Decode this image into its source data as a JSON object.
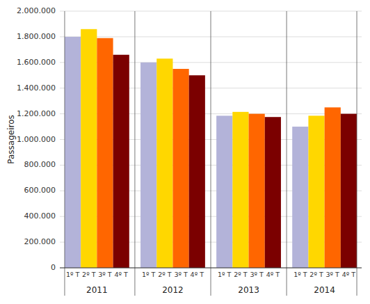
{
  "chart_data": {
    "type": "bar",
    "categories": [
      "2011",
      "2012",
      "2013",
      "2014"
    ],
    "series": [
      {
        "name": "1º T",
        "color": "#b3b3d9",
        "values": [
          1800000,
          1600000,
          1185000,
          1100000
        ]
      },
      {
        "name": "2º T",
        "color": "#ffd700",
        "values": [
          1860000,
          1630000,
          1215000,
          1185000
        ]
      },
      {
        "name": "3º T",
        "color": "#ff6600",
        "values": [
          1790000,
          1550000,
          1200000,
          1250000
        ]
      },
      {
        "name": "4º T",
        "color": "#7b0000",
        "values": [
          1660000,
          1500000,
          1175000,
          1200000
        ]
      }
    ],
    "ylabel": "Passageiros",
    "ylim": [
      0,
      2000000
    ],
    "yticks": [
      0,
      {
        "value": 200000,
        "label": "200.000"
      },
      {
        "value": 400000,
        "label": "400.000"
      },
      {
        "value": 600000,
        "label": "600.000"
      },
      {
        "value": 800000,
        "label": "800.000"
      },
      {
        "value": 1000000,
        "label": "1.000.000"
      },
      {
        "value": 1200000,
        "label": "1.200.000"
      },
      {
        "value": 1400000,
        "label": "1.400.000"
      },
      {
        "value": 1600000,
        "label": "1.600.000"
      },
      {
        "value": 1800000,
        "label": "1.800.000"
      },
      {
        "value": 2000000,
        "label": "2.000.000"
      }
    ],
    "grid": true
  }
}
